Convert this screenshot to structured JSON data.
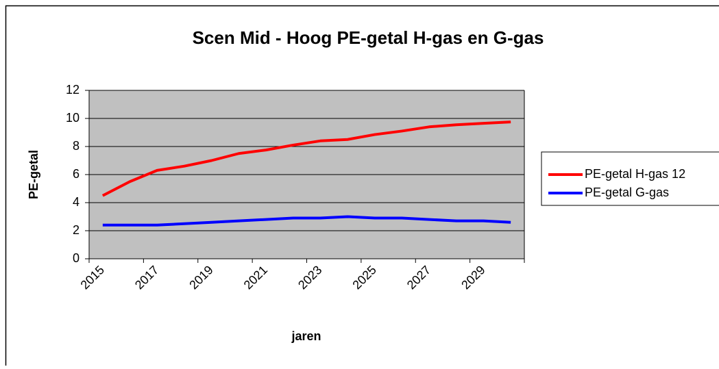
{
  "chart_data": {
    "type": "line",
    "title": "Scen Mid - Hoog PE-getal H-gas en G-gas",
    "x_label": "jaren",
    "y_label": "PE-getal",
    "categories": [
      "2015",
      null,
      "2017",
      null,
      "2019",
      null,
      "2021",
      null,
      "2023",
      null,
      "2025",
      null,
      "2027",
      null,
      "2029",
      null
    ],
    "series": [
      {
        "name": "PE-getal H-gas 12",
        "color": "#ff0000",
        "values": [
          4.5,
          5.5,
          6.3,
          6.6,
          7.0,
          7.5,
          7.75,
          8.1,
          8.4,
          8.5,
          8.85,
          9.1,
          9.4,
          9.55,
          9.65,
          9.75
        ]
      },
      {
        "name": "PE-getal G-gas",
        "color": "#0000ff",
        "values": [
          2.4,
          2.4,
          2.4,
          2.5,
          2.6,
          2.7,
          2.8,
          2.9,
          2.9,
          3.0,
          2.9,
          2.9,
          2.8,
          2.7,
          2.7,
          2.6
        ]
      }
    ],
    "ylim": [
      0,
      12
    ],
    "yticks": [
      0,
      2,
      4,
      6,
      8,
      10,
      12
    ],
    "grid": true,
    "legend": "right"
  }
}
